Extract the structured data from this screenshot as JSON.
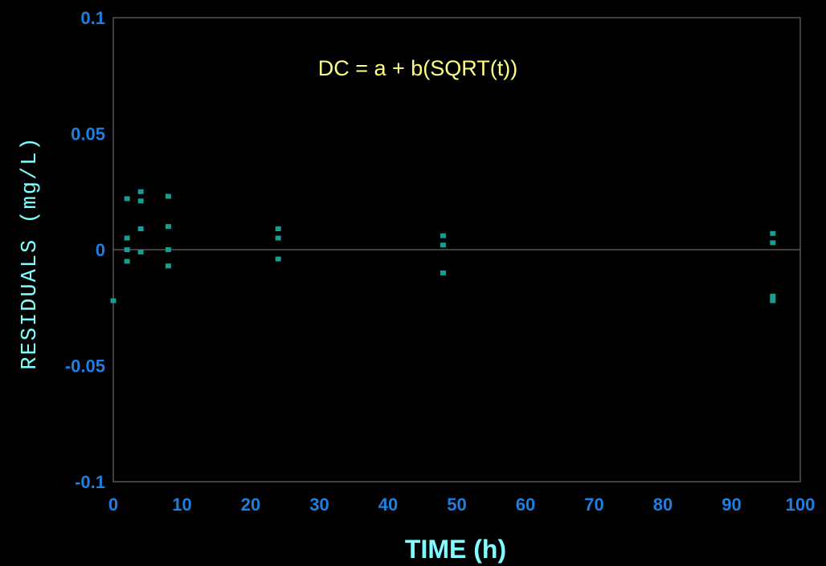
{
  "chart_data": {
    "type": "scatter",
    "title": "",
    "annotation": "DC = a + b(SQRT(t))",
    "xlabel": "TIME (h)",
    "ylabel": "RESIDUALS (mg/L)",
    "xlim": [
      0,
      100
    ],
    "ylim": [
      -0.1,
      0.1
    ],
    "x_ticks": [
      0,
      10,
      20,
      30,
      40,
      50,
      60,
      70,
      80,
      90,
      100
    ],
    "x_tick_labels": [
      "0",
      "10",
      "20",
      "30",
      "40",
      "50",
      "60",
      "70",
      "80",
      "90",
      "100"
    ],
    "y_ticks": [
      0.1,
      0.05,
      0,
      -0.05,
      -0.1
    ],
    "y_tick_labels": [
      "0.1",
      "0.05",
      "0",
      "-0.05",
      "-0.1"
    ],
    "grid": false,
    "zero_line": true,
    "series": [
      {
        "points": [
          {
            "x": 0,
            "y": -0.022
          },
          {
            "x": 2,
            "y": 0.022
          },
          {
            "x": 2,
            "y": 0.005
          },
          {
            "x": 2,
            "y": 0.0
          },
          {
            "x": 2,
            "y": -0.005
          },
          {
            "x": 4,
            "y": 0.025
          },
          {
            "x": 4,
            "y": 0.021
          },
          {
            "x": 4,
            "y": 0.009
          },
          {
            "x": 4,
            "y": -0.001
          },
          {
            "x": 8,
            "y": 0.023
          },
          {
            "x": 8,
            "y": 0.01
          },
          {
            "x": 8,
            "y": 0.0
          },
          {
            "x": 8,
            "y": -0.007
          },
          {
            "x": 24,
            "y": 0.009
          },
          {
            "x": 24,
            "y": 0.005
          },
          {
            "x": 24,
            "y": -0.004
          },
          {
            "x": 48,
            "y": 0.006
          },
          {
            "x": 48,
            "y": 0.002
          },
          {
            "x": 48,
            "y": -0.01
          },
          {
            "x": 96,
            "y": 0.007
          },
          {
            "x": 96,
            "y": 0.003
          },
          {
            "x": 96,
            "y": -0.02
          },
          {
            "x": 96,
            "y": -0.022
          }
        ]
      }
    ]
  },
  "colors": {
    "background": "#000000",
    "plot_border": "#555555",
    "zero_line": "#666666",
    "tick_labels": "#1e7fe0",
    "axis_titles": "#7fffff",
    "annotation": "#ffff80",
    "markers": "#1a9c94"
  }
}
